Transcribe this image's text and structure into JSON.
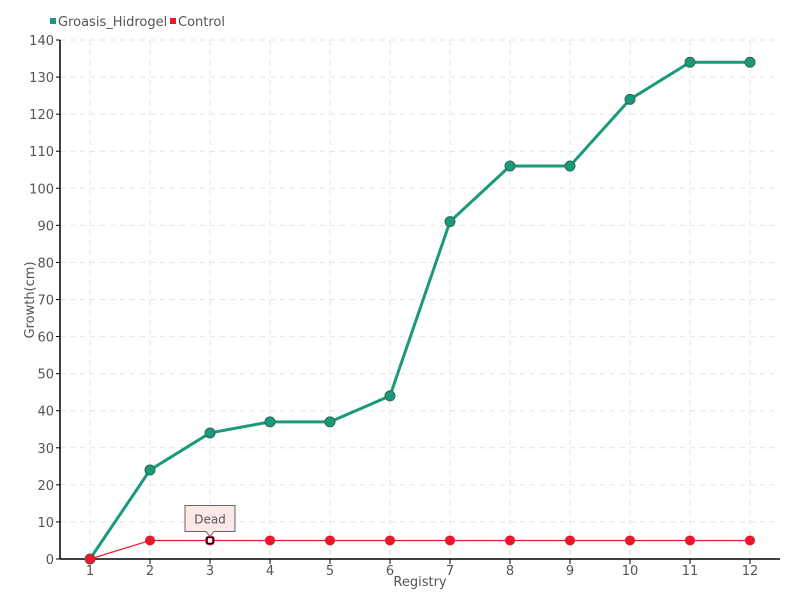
{
  "chart_data": {
    "type": "line",
    "title": "",
    "xlabel": "Registry",
    "ylabel": "Growth(cm)",
    "x": [
      1,
      2,
      3,
      4,
      5,
      6,
      7,
      8,
      9,
      10,
      11,
      12
    ],
    "ylim": [
      0,
      140
    ],
    "yticks": [
      0,
      10,
      20,
      30,
      40,
      50,
      60,
      70,
      80,
      90,
      100,
      110,
      120,
      130,
      140
    ],
    "grid": true,
    "legend_placement": "top-left",
    "series": [
      {
        "name": "Groasis_Hidrogel",
        "color": "#1a9a7a",
        "values": [
          0,
          24,
          34,
          37,
          37,
          44,
          91,
          106,
          106,
          124,
          134,
          134
        ]
      },
      {
        "name": "Control",
        "color": "#e8192c",
        "values": [
          0,
          5,
          5,
          5,
          5,
          5,
          5,
          5,
          5,
          5,
          5,
          5
        ]
      }
    ],
    "annotations": [
      {
        "x": 3,
        "y": 5,
        "series": "Control",
        "text": "Dead"
      }
    ]
  }
}
